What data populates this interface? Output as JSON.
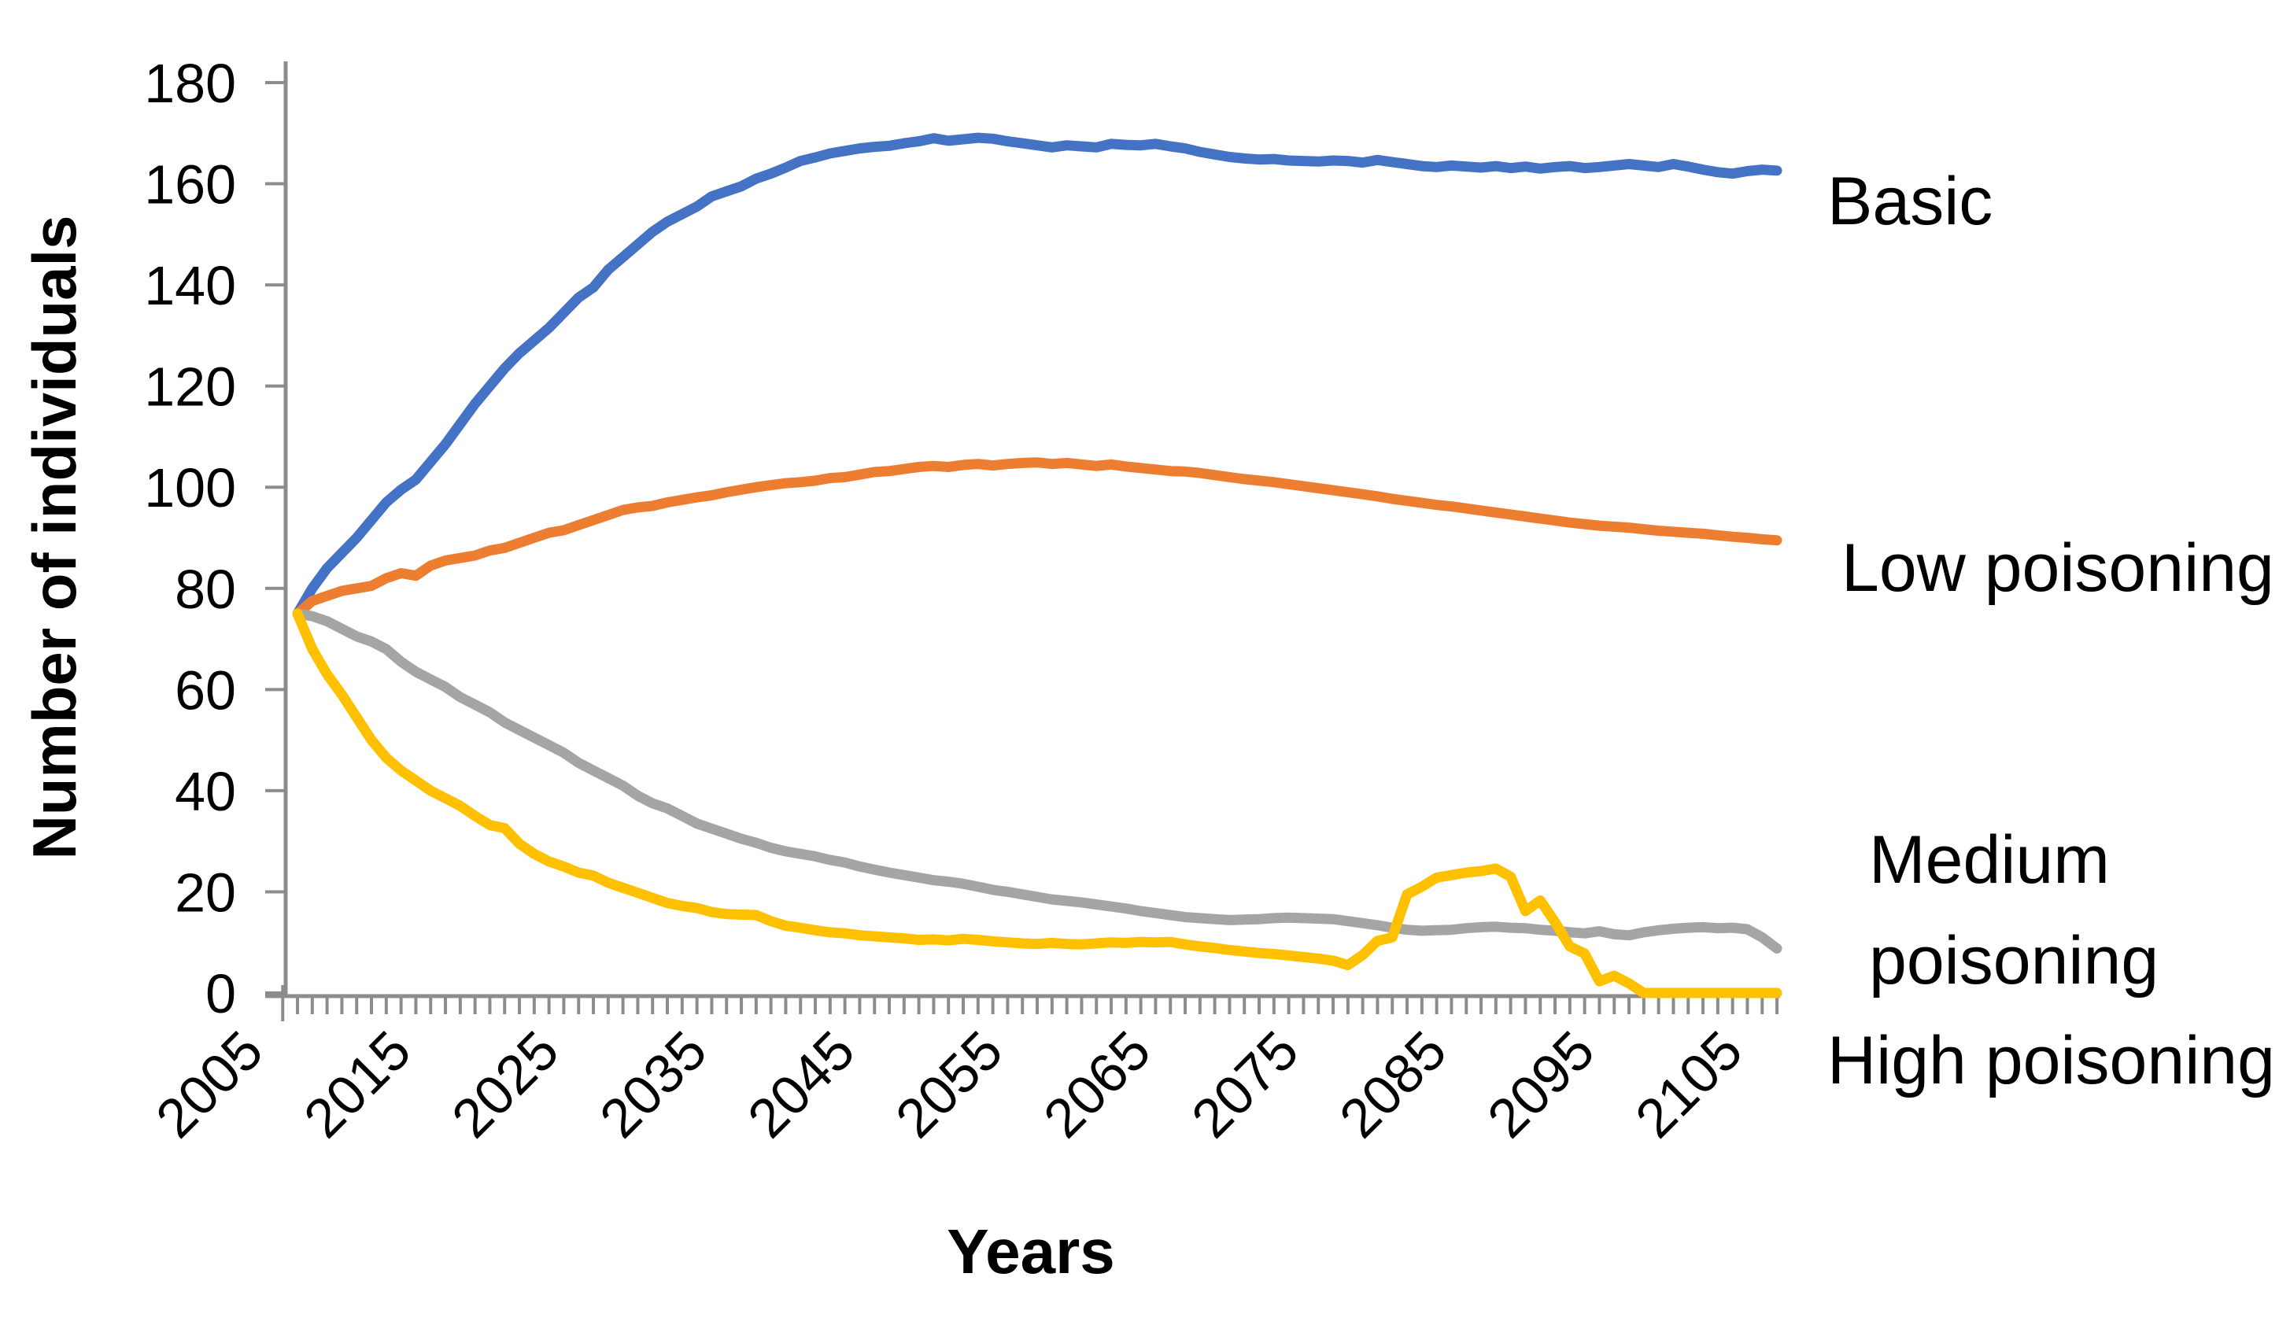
{
  "chart_data": {
    "type": "line",
    "title": "",
    "xlabel": "Years",
    "ylabel": "Number of individuals",
    "x_start": 2005,
    "x_step": 1,
    "xlim": [
      2004.2,
      2106
    ],
    "ylim": [
      0,
      180
    ],
    "grid": false,
    "legend_position": "labels-right-of-lines",
    "axis_color": "#8C8C8C",
    "text_color": "#000000",
    "y_ticks": [
      0,
      20,
      40,
      60,
      80,
      100,
      120,
      140,
      160,
      180
    ],
    "x_tick_labels": [
      2005,
      2015,
      2025,
      2035,
      2045,
      2055,
      2065,
      2075,
      2085,
      2095,
      2105
    ],
    "x_minor_tick_first": 2004,
    "x_minor_tick_last": 2105,
    "series": [
      {
        "name": "Basic",
        "label": "Basic",
        "color": "#4472C4",
        "values": [
          75,
          80,
          84,
          87,
          90,
          93.5,
          97,
          99.5,
          101.5,
          105,
          108.5,
          112.5,
          116.5,
          120,
          123.5,
          126.5,
          129,
          131.5,
          134.5,
          137.5,
          139.5,
          143,
          145.5,
          148,
          150.5,
          152.5,
          154,
          155.5,
          157.5,
          158.5,
          159.5,
          161,
          162,
          163.2,
          164.5,
          165.2,
          166,
          166.5,
          167,
          167.3,
          167.5,
          168,
          168.4,
          169,
          168.5,
          168.8,
          169.1,
          168.9,
          168.4,
          168,
          167.6,
          167.2,
          167.6,
          167.4,
          167.2,
          167.9,
          167.7,
          167.6,
          167.9,
          167.4,
          167,
          166.3,
          165.8,
          165.3,
          165,
          164.8,
          164.9,
          164.6,
          164.5,
          164.4,
          164.6,
          164.5,
          164.2,
          164.7,
          164.3,
          163.9,
          163.5,
          163.3,
          163.6,
          163.4,
          163.2,
          163.5,
          163.1,
          163.4,
          163,
          163.3,
          163.5,
          163.1,
          163.3,
          163.6,
          163.9,
          163.6,
          163.3,
          163.9,
          163.4,
          162.8,
          162.3,
          162,
          162.5,
          162.8,
          162.6
        ]
      },
      {
        "name": "Low poisoning",
        "label": "Low poisoning",
        "color": "#ED7D31",
        "values": [
          75,
          77.5,
          78.5,
          79.5,
          80,
          80.5,
          82,
          83,
          82.5,
          84.5,
          85.5,
          86,
          86.5,
          87.5,
          88,
          89,
          90,
          91,
          91.5,
          92.5,
          93.5,
          94.5,
          95.5,
          96,
          96.3,
          97,
          97.5,
          98,
          98.4,
          99,
          99.5,
          100,
          100.4,
          100.8,
          101,
          101.3,
          101.8,
          102,
          102.5,
          103,
          103.2,
          103.6,
          104,
          104.2,
          104,
          104.4,
          104.6,
          104.3,
          104.6,
          104.8,
          104.9,
          104.6,
          104.8,
          104.5,
          104.2,
          104.5,
          104.1,
          103.8,
          103.5,
          103.2,
          103.1,
          102.8,
          102.4,
          102,
          101.6,
          101.3,
          101,
          100.6,
          100.2,
          99.8,
          99.4,
          99,
          98.6,
          98.2,
          97.7,
          97.3,
          96.9,
          96.5,
          96.2,
          95.8,
          95.4,
          95,
          94.6,
          94.2,
          93.8,
          93.4,
          93,
          92.7,
          92.4,
          92.2,
          92,
          91.7,
          91.4,
          91.2,
          91,
          90.8,
          90.5,
          90.2,
          90,
          89.7,
          89.5
        ]
      },
      {
        "name": "Medium poisoning",
        "label": "Medium\npoisoning",
        "color": "#A5A5A5",
        "values": [
          75,
          74.5,
          73.5,
          72,
          70.5,
          69.5,
          68,
          65.5,
          63.5,
          62,
          60.5,
          58.5,
          57,
          55.5,
          53.5,
          52,
          50.5,
          49,
          47.5,
          45.5,
          44,
          42.5,
          41,
          39,
          37.5,
          36.5,
          35,
          33.5,
          32.5,
          31.5,
          30.5,
          29.7,
          28.7,
          28,
          27.5,
          27,
          26.3,
          25.8,
          25,
          24.4,
          23.8,
          23.3,
          22.8,
          22.3,
          22,
          21.6,
          21,
          20.4,
          20,
          19.5,
          19,
          18.5,
          18.2,
          17.9,
          17.5,
          17.1,
          16.7,
          16.2,
          15.8,
          15.4,
          15,
          14.8,
          14.6,
          14.4,
          14.5,
          14.6,
          14.8,
          14.9,
          14.8,
          14.7,
          14.6,
          14.2,
          13.8,
          13.4,
          12.9,
          12.5,
          12.3,
          12.4,
          12.5,
          12.8,
          13,
          13.1,
          12.9,
          12.8,
          12.5,
          12.3,
          12,
          11.8,
          12.2,
          11.6,
          11.4,
          12,
          12.4,
          12.7,
          12.9,
          13,
          12.8,
          12.9,
          12.6,
          11,
          8.8
        ]
      },
      {
        "name": "High poisoning",
        "label": "High poisoning",
        "color": "#FFC000",
        "values": [
          75,
          68,
          63,
          59,
          54.5,
          50,
          46.5,
          44,
          42,
          40,
          38.5,
          37,
          35,
          33.2,
          32.6,
          29.5,
          27.5,
          26,
          25,
          23.8,
          23.2,
          21.8,
          20.8,
          19.8,
          18.8,
          17.8,
          17.2,
          16.8,
          16,
          15.6,
          15.5,
          15.4,
          14.2,
          13.3,
          12.9,
          12.4,
          12,
          11.8,
          11.4,
          11.2,
          11,
          10.8,
          10.5,
          10.6,
          10.4,
          10.7,
          10.5,
          10.2,
          10,
          9.8,
          9.7,
          9.9,
          9.7,
          9.6,
          9.8,
          10,
          9.9,
          10.1,
          10,
          10.1,
          9.6,
          9.2,
          8.9,
          8.5,
          8.2,
          7.9,
          7.7,
          7.4,
          7.1,
          6.8,
          6.4,
          5.5,
          7.5,
          10.3,
          11,
          19.5,
          21,
          22.8,
          23.3,
          23.8,
          24.1,
          24.6,
          23,
          16.2,
          18.3,
          14,
          9.2,
          7.8,
          2.3,
          3.4,
          1.9,
          0,
          0,
          0,
          0,
          0,
          0,
          0,
          0,
          0,
          0
        ]
      }
    ],
    "series_label_positions": [
      {
        "left": 2322,
        "top": 192
      },
      {
        "left": 2340,
        "top": 658
      },
      {
        "left": 2375,
        "top": 1029
      },
      {
        "left": 2322,
        "top": 1284
      }
    ]
  }
}
